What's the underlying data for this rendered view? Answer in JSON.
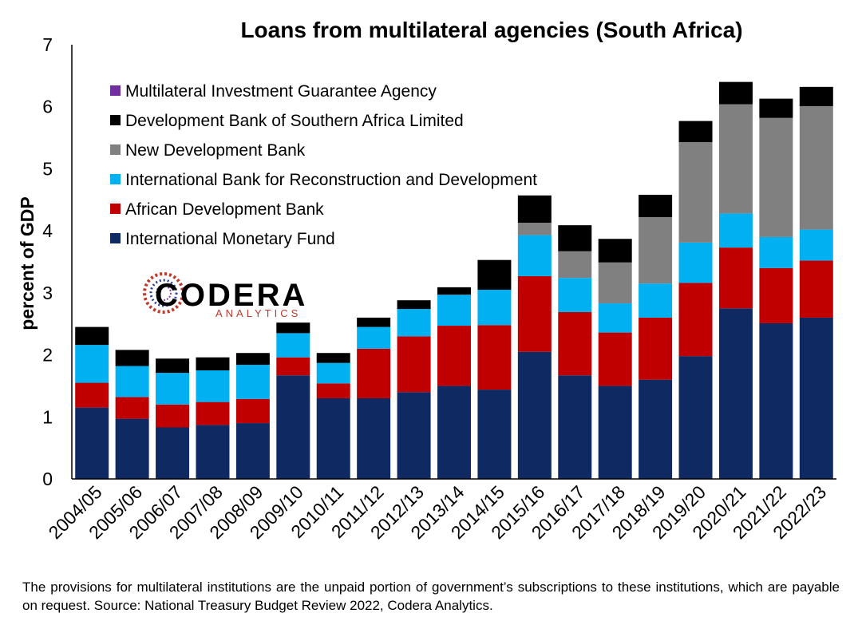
{
  "chart_data": {
    "type": "bar",
    "stacked": true,
    "title": "Loans from multilateral agencies (South Africa)",
    "ylabel": "percent of GDP",
    "xlabel": "",
    "ylim": [
      0,
      7
    ],
    "yticks": [
      "0",
      "1",
      "2",
      "3",
      "4",
      "5",
      "6",
      "7"
    ],
    "grid": false,
    "legend_position": "top-left",
    "categories": [
      "2004/05",
      "2005/06",
      "2006/07",
      "2007/08",
      "2008/09",
      "2009/10",
      "2010/11",
      "2011/12",
      "2012/13",
      "2013/14",
      "2014/15",
      "2015/16",
      "2016/17",
      "2017/18",
      "2018/19",
      "2019/20",
      "2020/21",
      "2021/22",
      "2022/23"
    ],
    "series": [
      {
        "name": "International Monetary Fund",
        "color": "#0f2a63",
        "values": [
          1.15,
          0.97,
          0.83,
          0.87,
          0.9,
          1.67,
          1.3,
          1.3,
          1.4,
          1.5,
          1.44,
          2.05,
          1.67,
          1.5,
          1.6,
          1.98,
          2.75,
          2.51,
          2.6
        ]
      },
      {
        "name": "African Development Bank",
        "color": "#c00000",
        "values": [
          0.4,
          0.35,
          0.37,
          0.37,
          0.39,
          0.29,
          0.24,
          0.8,
          0.9,
          0.97,
          1.04,
          1.22,
          1.02,
          0.86,
          1.0,
          1.18,
          0.98,
          0.89,
          0.92
        ]
      },
      {
        "name": "International Bank for Reconstruction and Development",
        "color": "#00b0f0",
        "values": [
          0.61,
          0.5,
          0.51,
          0.51,
          0.55,
          0.39,
          0.33,
          0.35,
          0.44,
          0.5,
          0.57,
          0.66,
          0.55,
          0.47,
          0.55,
          0.65,
          0.55,
          0.5,
          0.5
        ]
      },
      {
        "name": "New Development Bank",
        "color": "#808080",
        "values": [
          0,
          0,
          0,
          0,
          0,
          0,
          0,
          0,
          0,
          0,
          0,
          0.2,
          0.43,
          0.66,
          1.07,
          1.62,
          1.76,
          1.92,
          1.99
        ]
      },
      {
        "name": "Development Bank of Southern Africa Limited",
        "color": "#000000",
        "values": [
          0.29,
          0.26,
          0.23,
          0.21,
          0.19,
          0.17,
          0.16,
          0.15,
          0.14,
          0.12,
          0.48,
          0.44,
          0.42,
          0.38,
          0.36,
          0.34,
          0.36,
          0.31,
          0.31
        ]
      },
      {
        "name": "Multilateral Investment Guarantee Agency",
        "color": "#7030a0",
        "values": [
          0,
          0,
          0,
          0,
          0,
          0,
          0,
          0,
          0,
          0,
          0,
          0,
          0,
          0,
          0,
          0,
          0,
          0,
          0
        ]
      }
    ]
  },
  "logo": {
    "name": "CODERA",
    "subtitle": "ANALYTICS"
  },
  "footnote": "The provisions for multilateral institutions are the unpaid portion of government’s subscriptions to these institutions, which are payable on request. Source: National Treasury Budget Review 2022, Codera Analytics."
}
